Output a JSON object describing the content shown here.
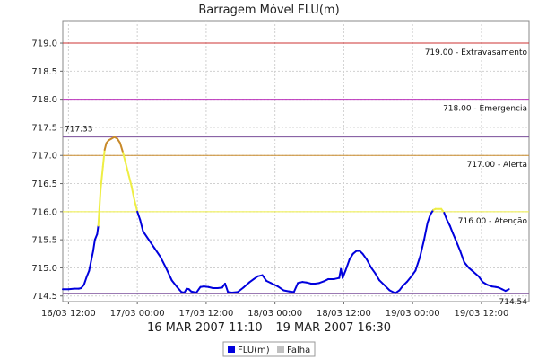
{
  "chart_data": {
    "type": "line",
    "title": "Barragem Móvel FLU(m)",
    "subtitle": "16 MAR 2007 11:10 – 19 MAR 2007 16:30",
    "ylim": [
      714.4,
      719.4
    ],
    "yticks": [
      714.5,
      715.0,
      715.5,
      716.0,
      716.5,
      717.0,
      717.5,
      718.0,
      718.5,
      719.0
    ],
    "ytick_labels": [
      "714.5",
      "715.0",
      "715.5",
      "716.0",
      "716.5",
      "717.0",
      "717.5",
      "718.0",
      "718.5",
      "719.0"
    ],
    "xlim": [
      0,
      81.3
    ],
    "xticks": [
      1.0,
      13.0,
      25.0,
      37.0,
      49.0,
      61.0,
      73.0
    ],
    "xtick_labels": [
      "16/03 12:00",
      "17/03 00:00",
      "17/03 12:00",
      "18/03 00:00",
      "18/03 12:00",
      "19/03 00:00",
      "19/03 12:00"
    ],
    "grid": true,
    "thresholds": [
      {
        "value": 719.0,
        "label": "719.00 - Extravasamento",
        "color": "#cc3333"
      },
      {
        "value": 718.0,
        "label": "718.00 - Emergencia",
        "color": "#bb33bb"
      },
      {
        "value": 717.0,
        "label": "717.00 - Alerta",
        "color": "#c88a2a"
      },
      {
        "value": 716.0,
        "label": "716.00 - Atenção",
        "color": "#eeee44"
      }
    ],
    "max_line": {
      "value": 717.33,
      "label": "717.33",
      "color": "#7a4e9a"
    },
    "min_line": {
      "value": 714.54,
      "label": "714.54",
      "color": "#7a4e9a"
    },
    "series": [
      {
        "name": "FLU(m)",
        "color": "#0000dd",
        "x": [
          0,
          1.0,
          2.0,
          2.8,
          3.2,
          3.7,
          4.2,
          4.6,
          5.0,
          5.3,
          5.6,
          6.0,
          6.2,
          6.6,
          7.0,
          7.3,
          7.6,
          8.0,
          8.5,
          9.0,
          9.5,
          10.0,
          10.5,
          11.0,
          11.5,
          12.0,
          12.4,
          13.0,
          13.5,
          14.0,
          15.0,
          16.0,
          17.0,
          18.0,
          19.0,
          20.0,
          20.7,
          21.2,
          21.6,
          22.0,
          22.4,
          22.8,
          23.3,
          24.0,
          24.6,
          25.4,
          26.2,
          27.0,
          27.8,
          28.3,
          28.8,
          29.5,
          30.5,
          31.5,
          32.5,
          33.3,
          34.0,
          34.8,
          35.5,
          36.3,
          37.5,
          38.5,
          39.5,
          40.3,
          41.0,
          41.8,
          42.5,
          43.3,
          44.0,
          44.7,
          45.5,
          46.3,
          47.3,
          48.2,
          48.5,
          48.8,
          49.3,
          50.0,
          50.6,
          51.2,
          51.8,
          52.3,
          53.0,
          53.8,
          54.5,
          55.2,
          56.0,
          57.0,
          58.0,
          58.7,
          59.3,
          60.0,
          60.8,
          61.5,
          62.3,
          63.0,
          63.6,
          64.1,
          64.6,
          65.0,
          65.5,
          66.0,
          66.5,
          67.0,
          67.5,
          68.0,
          68.5,
          69.3,
          70.0,
          70.8,
          71.6,
          72.5,
          73.2,
          74.0,
          74.8,
          75.5,
          76.0,
          76.6,
          77.2,
          77.8
        ],
        "y": [
          714.62,
          714.62,
          714.63,
          714.63,
          714.64,
          714.7,
          714.85,
          714.95,
          715.15,
          715.3,
          715.5,
          715.6,
          715.75,
          716.4,
          716.8,
          717.1,
          717.22,
          717.27,
          717.3,
          717.33,
          717.3,
          717.22,
          717.05,
          716.85,
          716.65,
          716.45,
          716.25,
          716.0,
          715.85,
          715.65,
          715.5,
          715.35,
          715.2,
          715.0,
          714.78,
          714.65,
          714.57,
          714.56,
          714.63,
          714.62,
          714.58,
          714.57,
          714.56,
          714.66,
          714.67,
          714.66,
          714.64,
          714.64,
          714.65,
          714.72,
          714.57,
          714.56,
          714.57,
          714.65,
          714.74,
          714.8,
          714.85,
          714.87,
          714.77,
          714.73,
          714.67,
          714.6,
          714.58,
          714.57,
          714.73,
          714.75,
          714.74,
          714.72,
          714.72,
          714.73,
          714.76,
          714.8,
          714.8,
          714.82,
          714.98,
          714.82,
          714.95,
          715.15,
          715.25,
          715.3,
          715.3,
          715.25,
          715.15,
          715.0,
          714.9,
          714.78,
          714.7,
          714.6,
          714.55,
          714.6,
          714.68,
          714.75,
          714.85,
          714.95,
          715.2,
          715.5,
          715.8,
          715.95,
          716.03,
          716.05,
          716.05,
          716.05,
          715.98,
          715.85,
          715.75,
          715.62,
          715.5,
          715.3,
          715.1,
          715.0,
          714.93,
          714.85,
          714.75,
          714.7,
          714.67,
          714.66,
          714.65,
          714.62,
          714.59,
          714.62
        ]
      },
      {
        "name": "Falha",
        "color": "#c0c0c0",
        "x": [],
        "y": []
      }
    ],
    "legend": {
      "position": "bottom-center"
    }
  }
}
